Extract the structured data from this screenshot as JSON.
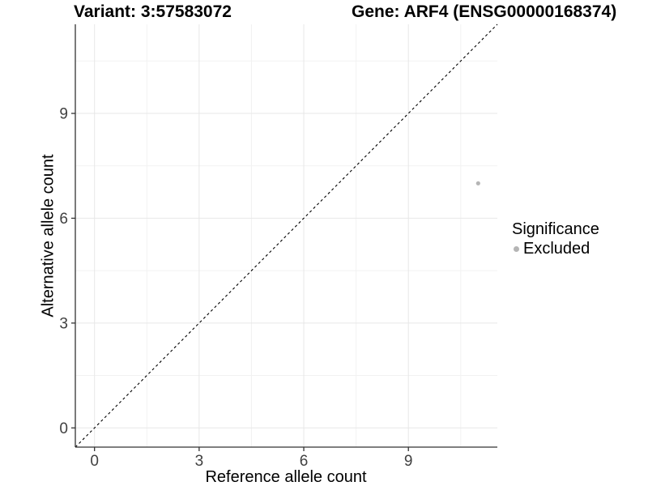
{
  "titles": {
    "variant": "Variant: 3:57583072",
    "gene": "Gene: ARF4 (ENSG00000168374)"
  },
  "axes": {
    "x": {
      "label": "Reference allele count"
    },
    "y": {
      "label": "Alternative allele count"
    }
  },
  "legend": {
    "title": "Significance",
    "items": [
      {
        "label": "Excluded",
        "color": "#b5b5b5"
      }
    ]
  },
  "chart_data": {
    "type": "scatter",
    "title": "Variant: 3:57583072 | Gene: ARF4 (ENSG00000168374)",
    "xlabel": "Reference allele count",
    "ylabel": "Alternative allele count",
    "xlim": [
      -0.55,
      11.55
    ],
    "ylim": [
      -0.55,
      11.55
    ],
    "x_ticks": [
      0,
      3,
      6,
      9
    ],
    "y_ticks": [
      0,
      3,
      6,
      9
    ],
    "x_minor_ticks": [
      1.5,
      4.5,
      7.5,
      10.5
    ],
    "y_minor_ticks": [
      1.5,
      4.5,
      7.5,
      10.5
    ],
    "grid": true,
    "legend_position": "right",
    "legend_title": "Significance",
    "series": [
      {
        "name": "Excluded",
        "color": "#b5b5b5",
        "points": [
          {
            "x": 11,
            "y": 7
          }
        ]
      }
    ],
    "reference_line": {
      "type": "identity",
      "style": "dashed",
      "color": "#000000"
    }
  },
  "colors": {
    "background": "#ffffff",
    "axis_line": "#333333",
    "tick_mark": "#333333",
    "tick_text": "#404040",
    "grid_major": "#e7e7e7",
    "grid_minor": "#f2f2f2",
    "point": "#b5b5b5",
    "reference_line": "#000000"
  }
}
